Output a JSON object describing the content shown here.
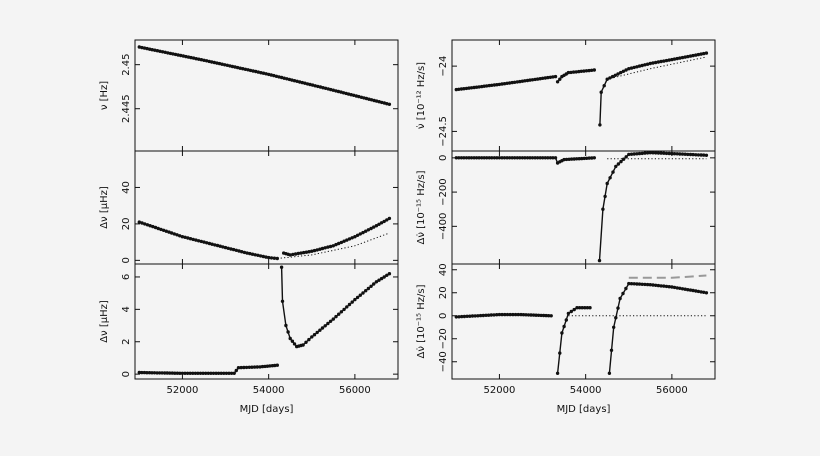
{
  "chart_data": [
    {
      "type": "scatter",
      "panel": "left-top",
      "ylabel": "ν [Hz]",
      "xlim": [
        50900,
        57000
      ],
      "ylim": [
        2.4402,
        2.4528
      ],
      "yticks": [
        2.445,
        2.45
      ],
      "yticklabels": [
        "2.445",
        "2.45"
      ],
      "series": [
        {
          "values": [
            [
              51000,
              2.452
            ],
            [
              52500,
              2.4505
            ],
            [
              54000,
              2.4489
            ],
            [
              55500,
              2.4471
            ],
            [
              56800,
              2.4455
            ]
          ]
        }
      ]
    },
    {
      "type": "scatter",
      "panel": "left-middle",
      "ylabel": "Δν [μHz]",
      "xlim": [
        50900,
        57000
      ],
      "ylim": [
        -2,
        60
      ],
      "yticks": [
        0,
        20,
        40
      ],
      "yticklabels": [
        "0",
        "20",
        "40"
      ],
      "series": [
        {
          "values": [
            [
              51000,
              21
            ],
            [
              51500,
              17
            ],
            [
              52000,
              13
            ],
            [
              52500,
              10
            ],
            [
              53000,
              7
            ],
            [
              53500,
              4
            ],
            [
              54000,
              1.5
            ],
            [
              54200,
              1
            ]
          ]
        },
        {
          "values": [
            [
              54350,
              4
            ],
            [
              54500,
              3
            ],
            [
              55000,
              5
            ],
            [
              55500,
              8
            ],
            [
              56000,
              13
            ],
            [
              56500,
              19
            ],
            [
              56800,
              23
            ]
          ]
        },
        {
          "style": "dotted",
          "values": [
            [
              54200,
              1
            ],
            [
              55000,
              3
            ],
            [
              56000,
              8
            ],
            [
              56800,
              15
            ]
          ]
        }
      ]
    },
    {
      "type": "scatter",
      "panel": "left-bottom",
      "xlabel": "MJD [days]",
      "ylabel": "Δν [μHz]",
      "xlim": [
        50900,
        57000
      ],
      "ylim": [
        -0.3,
        6.8
      ],
      "xticks": [
        52000,
        54000,
        56000
      ],
      "xticklabels": [
        "52000",
        "54000",
        "56000"
      ],
      "yticks": [
        0,
        2,
        4,
        6
      ],
      "yticklabels": [
        "0",
        "2",
        "4",
        "6"
      ],
      "series": [
        {
          "values": [
            [
              51000,
              0.1
            ],
            [
              52000,
              0.05
            ],
            [
              53200,
              0.05
            ],
            [
              53300,
              0.4
            ],
            [
              53800,
              0.45
            ],
            [
              54200,
              0.55
            ]
          ]
        },
        {
          "values": [
            [
              54300,
              6.6
            ],
            [
              54320,
              4.5
            ],
            [
              54400,
              3.0
            ],
            [
              54500,
              2.2
            ],
            [
              54650,
              1.7
            ],
            [
              54800,
              1.8
            ],
            [
              55000,
              2.3
            ],
            [
              55500,
              3.4
            ],
            [
              56000,
              4.6
            ],
            [
              56500,
              5.7
            ],
            [
              56800,
              6.2
            ]
          ]
        }
      ]
    },
    {
      "type": "scatter",
      "panel": "right-top",
      "ylabel": "ν̇ [10⁻¹² Hz/s]",
      "xlim": [
        50900,
        57000
      ],
      "ylim": [
        -24.65,
        -23.8
      ],
      "yticks": [
        -24.5,
        -24
      ],
      "yticklabels": [
        "−24.5",
        "−24"
      ],
      "series": [
        {
          "values": [
            [
              51000,
              -24.18
            ],
            [
              52000,
              -24.14
            ],
            [
              53300,
              -24.08
            ]
          ]
        },
        {
          "values": [
            [
              53350,
              -24.12
            ],
            [
              53450,
              -24.08
            ],
            [
              53600,
              -24.05
            ],
            [
              54200,
              -24.03
            ]
          ]
        },
        {
          "values": [
            [
              54330,
              -24.45
            ],
            [
              54360,
              -24.2
            ],
            [
              54500,
              -24.1
            ],
            [
              55000,
              -24.02
            ],
            [
              55500,
              -23.98
            ],
            [
              56000,
              -23.95
            ],
            [
              56800,
              -23.9
            ]
          ]
        },
        {
          "style": "dotted",
          "values": [
            [
              54500,
              -24.1
            ],
            [
              55500,
              -24.02
            ],
            [
              56800,
              -23.93
            ]
          ]
        }
      ]
    },
    {
      "type": "scatter",
      "panel": "right-middle",
      "ylabel": "Δν̇ [10⁻¹⁵ Hz/s]",
      "xlim": [
        50900,
        57000
      ],
      "ylim": [
        -620,
        40
      ],
      "yticks": [
        -400,
        -200,
        0
      ],
      "yticklabels": [
        "−400",
        "−200",
        "0"
      ],
      "series": [
        {
          "values": [
            [
              51000,
              0
            ],
            [
              52000,
              0
            ],
            [
              53300,
              0
            ],
            [
              53350,
              -30
            ],
            [
              53500,
              -10
            ],
            [
              54200,
              0
            ]
          ]
        },
        {
          "values": [
            [
              54320,
              -600
            ],
            [
              54400,
              -300
            ],
            [
              54500,
              -150
            ],
            [
              54700,
              -50
            ],
            [
              55000,
              20
            ],
            [
              55500,
              30
            ],
            [
              56000,
              25
            ],
            [
              56800,
              15
            ]
          ]
        },
        {
          "style": "dotted",
          "values": [
            [
              54500,
              -5
            ],
            [
              56800,
              -5
            ]
          ]
        }
      ]
    },
    {
      "type": "scatter",
      "panel": "right-bottom",
      "xlabel": "MJD [days]",
      "ylabel": "Δν̇ [10⁻¹⁵ Hz/s]",
      "xlim": [
        50900,
        57000
      ],
      "ylim": [
        -55,
        45
      ],
      "xticks": [
        52000,
        54000,
        56000
      ],
      "xticklabels": [
        "52000",
        "54000",
        "56000"
      ],
      "yticks": [
        -40,
        -20,
        0,
        20,
        40
      ],
      "yticklabels": [
        "−40",
        "−20",
        "0",
        "20",
        "40"
      ],
      "series": [
        {
          "values": [
            [
              51000,
              -1
            ],
            [
              51500,
              0
            ],
            [
              52000,
              1
            ],
            [
              52500,
              1
            ],
            [
              53200,
              0
            ]
          ]
        },
        {
          "values": [
            [
              53350,
              -50
            ],
            [
              53450,
              -15
            ],
            [
              53600,
              2
            ],
            [
              53800,
              7
            ],
            [
              54100,
              7
            ]
          ]
        },
        {
          "values": [
            [
              54550,
              -50
            ],
            [
              54650,
              -10
            ],
            [
              54800,
              15
            ],
            [
              55000,
              28
            ],
            [
              55500,
              27
            ],
            [
              56000,
              25
            ],
            [
              56800,
              20
            ]
          ]
        },
        {
          "style": "dashed",
          "values": [
            [
              55000,
              33
            ],
            [
              56000,
              33
            ],
            [
              56800,
              35
            ]
          ]
        },
        {
          "style": "dotted",
          "values": [
            [
              53600,
              0
            ],
            [
              56800,
              0
            ]
          ]
        }
      ]
    }
  ]
}
